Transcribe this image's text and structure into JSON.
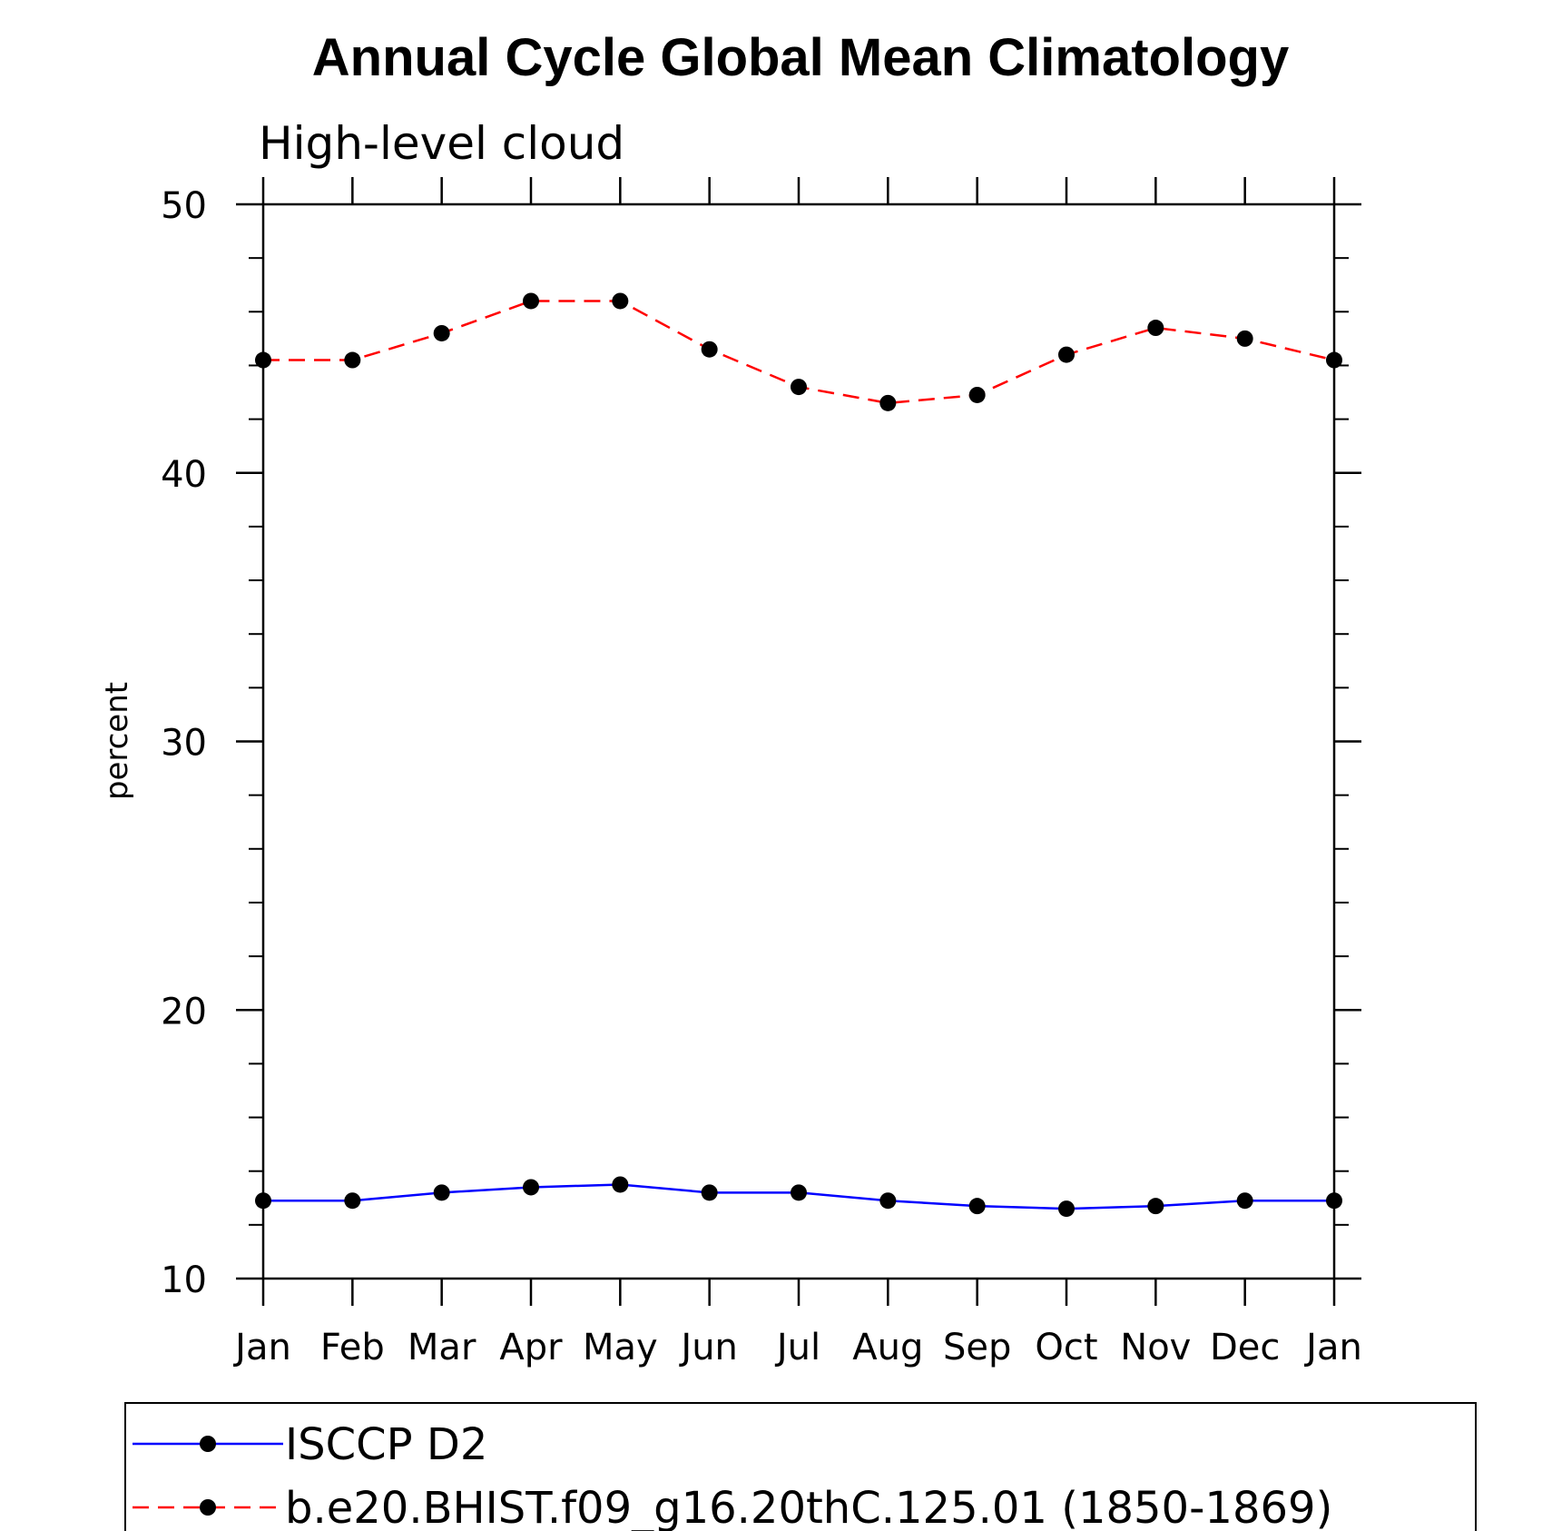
{
  "chart_data": {
    "type": "line",
    "title": "Annual Cycle Global Mean Climatology",
    "subtitle": "High-level cloud",
    "ylabel": "percent",
    "xlabel": "",
    "categories": [
      "Jan",
      "Feb",
      "Mar",
      "Apr",
      "May",
      "Jun",
      "Jul",
      "Aug",
      "Sep",
      "Oct",
      "Nov",
      "Dec",
      "Jan"
    ],
    "ylim": [
      10,
      50
    ],
    "yticks": [
      10,
      20,
      30,
      40,
      50
    ],
    "y_minor_step": 2,
    "grid": false,
    "legend_position": "bottom",
    "series": [
      {
        "name": "ISCCP D2",
        "color": "#0000ff",
        "dash": "solid",
        "marker": "filled-circle",
        "values": [
          12.9,
          12.9,
          13.2,
          13.4,
          13.5,
          13.2,
          13.2,
          12.9,
          12.7,
          12.6,
          12.7,
          12.9,
          12.9
        ]
      },
      {
        "name": "b.e20.BHIST.f09_g16.20thC.125.01 (1850-1869)",
        "color": "#ff0000",
        "dash": "dashed",
        "marker": "filled-circle",
        "values": [
          44.2,
          44.2,
          45.2,
          46.4,
          46.4,
          44.6,
          43.2,
          42.6,
          42.9,
          44.4,
          45.4,
          45.0,
          44.2
        ]
      }
    ]
  }
}
